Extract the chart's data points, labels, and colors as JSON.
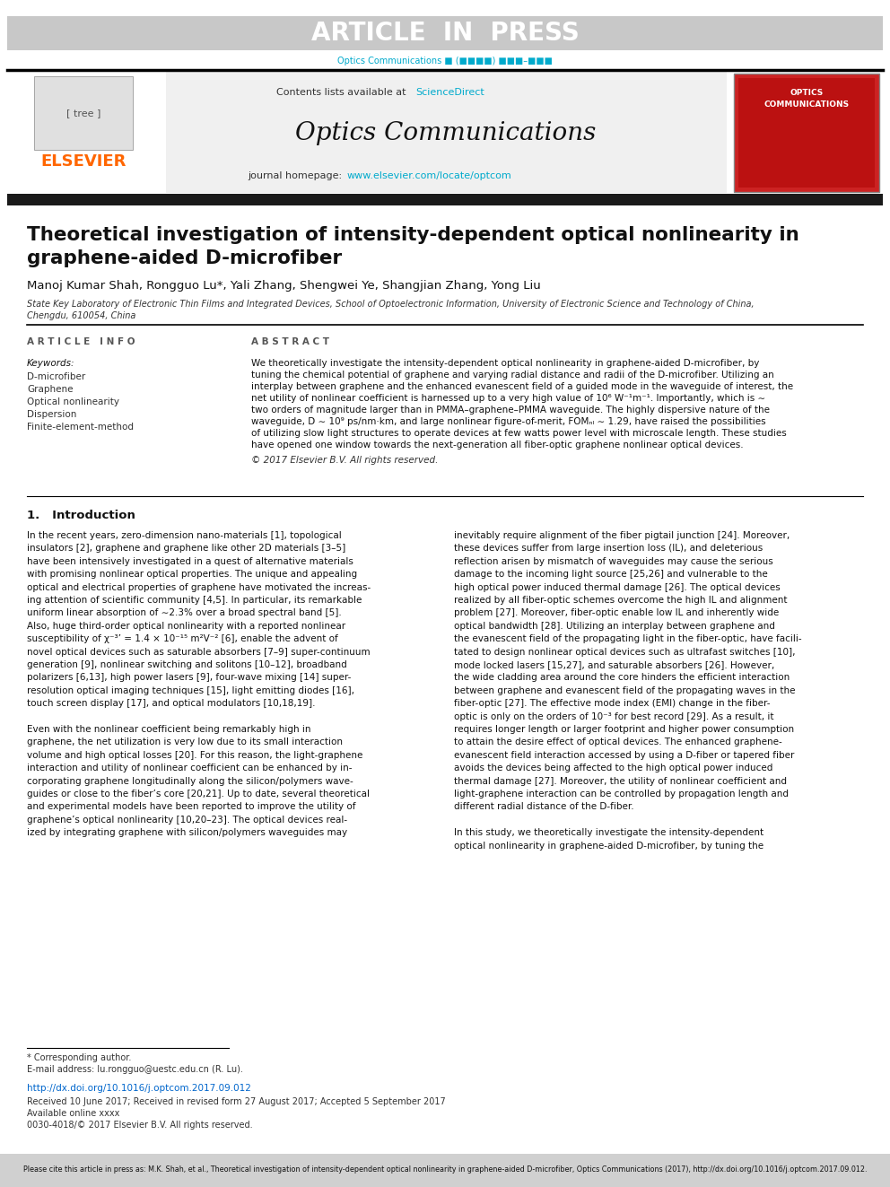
{
  "article_in_press_text": "ARTICLE  IN  PRESS",
  "journal_ref_color": "#00aacc",
  "journal_ref_text": "Optics Communications ■ (■■■■) ■■■–■■■",
  "contents_text": "Contents lists available at",
  "sciencedirect_text": "ScienceDirect",
  "sciencedirect_color": "#00aacc",
  "journal_name": "Optics Communications",
  "journal_homepage_prefix": "journal homepage: ",
  "journal_url": "www.elsevier.com/locate/optcom",
  "journal_url_color": "#00aacc",
  "elsevier_color": "#ff6600",
  "paper_title_line1": "Theoretical investigation of intensity-dependent optical nonlinearity in",
  "paper_title_line2": "graphene-aided D-microfiber",
  "authors": "Manoj Kumar Shah, Rongguo Lu*, Yali Zhang, Shengwei Ye, Shangjian Zhang, Yong Liu",
  "affiliation_line1": "State Key Laboratory of Electronic Thin Films and Integrated Devices, School of Optoelectronic Information, University of Electronic Science and Technology of China,",
  "affiliation_line2": "Chengdu, 610054, China",
  "section_article_info": "A R T I C L E   I N F O",
  "section_abstract": "A B S T R A C T",
  "keywords_label": "Keywords:",
  "keywords": [
    "D-microfiber",
    "Graphene",
    "Optical nonlinearity",
    "Dispersion",
    "Finite-element-method"
  ],
  "copyright_text": "© 2017 Elsevier B.V. All rights reserved.",
  "intro_heading": "1.   Introduction",
  "footnote_star": "* Corresponding author.",
  "footnote_email": "E-mail address: lu.rongguo@uestc.edu.cn (R. Lu).",
  "doi_text": "http://dx.doi.org/10.1016/j.optcom.2017.09.012",
  "received_text": "Received 10 June 2017; Received in revised form 27 August 2017; Accepted 5 September 2017",
  "available_text": "Available online xxxx",
  "issn_text": "0030-4018/© 2017 Elsevier B.V. All rights reserved.",
  "bottom_note": "Please cite this article in press as: M.K. Shah, et al., Theoretical investigation of intensity-dependent optical nonlinearity in graphene-aided D-microfiber, Optics Communications (2017), http://dx.doi.org/10.1016/j.optcom.2017.09.012.",
  "bg_color": "#ffffff",
  "text_color": "#000000"
}
